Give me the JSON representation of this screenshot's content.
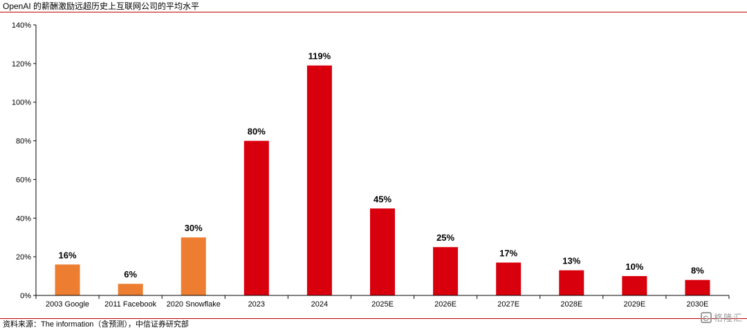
{
  "header": {
    "title": "OpenAI 的薪酬激励远超历史上互联网公司的平均水平"
  },
  "footer": {
    "source": "资料来源：The information（含预测），中信证券研究部",
    "watermark": "格隆汇"
  },
  "colors": {
    "historical": "#ED7D31",
    "openai": "#D9000D",
    "rule": "#C00000"
  },
  "chart_data": {
    "type": "bar",
    "categories": [
      "2003 Google",
      "2011 Facebook",
      "2020 Snowflake",
      "2023",
      "2024",
      "2025E",
      "2026E",
      "2027E",
      "2028E",
      "2029E",
      "2030E"
    ],
    "values": [
      16,
      6,
      30,
      80,
      119,
      45,
      25,
      17,
      13,
      10,
      8
    ],
    "data_labels": [
      "16%",
      "6%",
      "30%",
      "80%",
      "119%",
      "45%",
      "25%",
      "17%",
      "13%",
      "10%",
      "8%"
    ],
    "bar_colors": [
      "#ED7D31",
      "#ED7D31",
      "#ED7D31",
      "#D9000D",
      "#D9000D",
      "#D9000D",
      "#D9000D",
      "#D9000D",
      "#D9000D",
      "#D9000D",
      "#D9000D"
    ],
    "ylim": [
      0,
      140
    ],
    "yticks": [
      0,
      20,
      40,
      60,
      80,
      100,
      120,
      140
    ],
    "ytick_labels": [
      "0%",
      "20%",
      "40%",
      "60%",
      "80%",
      "100%",
      "120%",
      "140%"
    ],
    "xlabel": "",
    "ylabel": "",
    "grid": false,
    "legend": "none"
  }
}
